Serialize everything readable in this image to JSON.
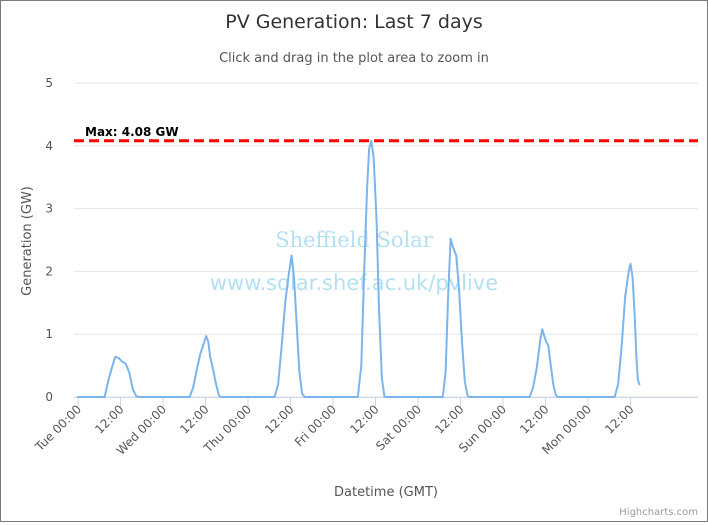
{
  "chart_data": {
    "type": "line",
    "title": "PV Generation: Last 7 days",
    "subtitle": "Click and drag in the plot area to zoom in",
    "xlabel": "Datetime (GMT)",
    "ylabel": "Generation (GW)",
    "ylim": [
      0,
      5
    ],
    "yticks": [
      "0",
      "1",
      "2",
      "3",
      "4",
      "5"
    ],
    "grid": "horizontal",
    "xticks": [
      "Tue 00:00",
      "12:00",
      "Wed 00:00",
      "12:00",
      "Thu 00:00",
      "12:00",
      "Fri 00:00",
      "12:00",
      "Sat 00:00",
      "12:00",
      "Sun 00:00",
      "12:00",
      "Mon 00:00",
      "12:00"
    ],
    "series": [
      {
        "x_unit": "hours since Tue 00:00",
        "color": "#7cb5ec",
        "points": [
          [
            0,
            0
          ],
          [
            6,
            0
          ],
          [
            7.5,
            0
          ],
          [
            8.5,
            0.25
          ],
          [
            9.5,
            0.45
          ],
          [
            10.5,
            0.64
          ],
          [
            11.5,
            0.62
          ],
          [
            12.5,
            0.56
          ],
          [
            13.5,
            0.53
          ],
          [
            14.5,
            0.38
          ],
          [
            15.5,
            0.12
          ],
          [
            16.5,
            0.01
          ],
          [
            17.5,
            0
          ],
          [
            24,
            0
          ],
          [
            31.5,
            0
          ],
          [
            32.5,
            0.15
          ],
          [
            33.5,
            0.42
          ],
          [
            34.5,
            0.68
          ],
          [
            35.5,
            0.85
          ],
          [
            36.2,
            0.97
          ],
          [
            36.8,
            0.88
          ],
          [
            37.3,
            0.65
          ],
          [
            38.2,
            0.42
          ],
          [
            39,
            0.2
          ],
          [
            39.8,
            0.02
          ],
          [
            40.5,
            0
          ],
          [
            48,
            0
          ],
          [
            55.5,
            0
          ],
          [
            56.5,
            0.2
          ],
          [
            57.5,
            0.8
          ],
          [
            58.5,
            1.5
          ],
          [
            59.5,
            1.95
          ],
          [
            60.3,
            2.25
          ],
          [
            61,
            1.9
          ],
          [
            61.8,
            1.1
          ],
          [
            62.5,
            0.4
          ],
          [
            63.3,
            0.05
          ],
          [
            64,
            0
          ],
          [
            72,
            0
          ],
          [
            79,
            0
          ],
          [
            80,
            0.5
          ],
          [
            80.8,
            2.0
          ],
          [
            81.6,
            3.3
          ],
          [
            82.2,
            3.95
          ],
          [
            82.8,
            4.08
          ],
          [
            83.5,
            3.8
          ],
          [
            84.3,
            2.8
          ],
          [
            85,
            1.4
          ],
          [
            85.8,
            0.3
          ],
          [
            86.5,
            0.01
          ],
          [
            87,
            0
          ],
          [
            96,
            0
          ],
          [
            103,
            0
          ],
          [
            103.8,
            0.4
          ],
          [
            104.5,
            1.6
          ],
          [
            105.2,
            2.52
          ],
          [
            105.9,
            2.38
          ],
          [
            106.8,
            2.25
          ],
          [
            107.6,
            1.7
          ],
          [
            108.4,
            0.9
          ],
          [
            109.2,
            0.25
          ],
          [
            110,
            0.02
          ],
          [
            110.5,
            0
          ],
          [
            120,
            0
          ],
          [
            127.5,
            0
          ],
          [
            128.5,
            0.15
          ],
          [
            129.5,
            0.45
          ],
          [
            130.5,
            0.9
          ],
          [
            131.1,
            1.08
          ],
          [
            131.6,
            0.98
          ],
          [
            132.2,
            0.88
          ],
          [
            132.8,
            0.82
          ],
          [
            133.5,
            0.5
          ],
          [
            134.2,
            0.2
          ],
          [
            134.9,
            0.03
          ],
          [
            135.5,
            0
          ],
          [
            144,
            0
          ],
          [
            151.5,
            0
          ],
          [
            152.5,
            0.2
          ],
          [
            153.5,
            0.8
          ],
          [
            154.5,
            1.6
          ],
          [
            155.5,
            2.0
          ],
          [
            156,
            2.12
          ],
          [
            156.6,
            1.9
          ],
          [
            157.2,
            1.3
          ],
          [
            157.7,
            0.6
          ],
          [
            158.1,
            0.27
          ],
          [
            158.5,
            0.2
          ]
        ]
      }
    ],
    "plotlines": [
      {
        "value": 4.08,
        "label": "Max: 4.08 GW",
        "color": "#ff0000",
        "style": "dashed"
      }
    ],
    "watermark": [
      "Sheffield Solar",
      "www.solar.shef.ac.uk/pvlive"
    ],
    "credits": "Highcharts.com"
  }
}
